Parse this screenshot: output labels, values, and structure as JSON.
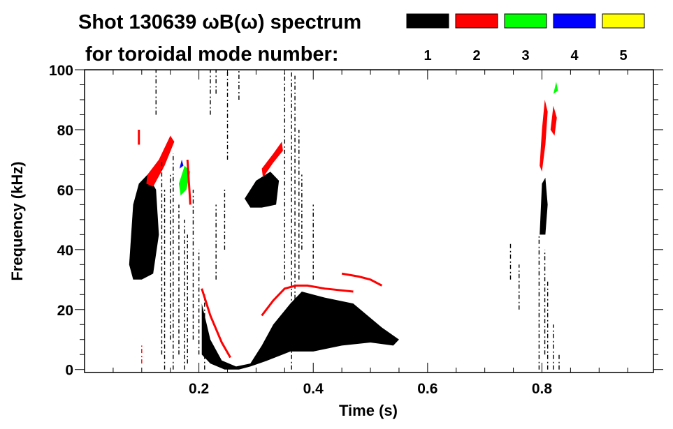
{
  "chart_data": {
    "type": "heatmap",
    "title": "Shot 130639 ωB(ω) spectrum",
    "legend_title": "for toroidal mode number:",
    "legend": [
      {
        "label": "1",
        "color": "#000000"
      },
      {
        "label": "2",
        "color": "#ff0000"
      },
      {
        "label": "3",
        "color": "#00ff00"
      },
      {
        "label": "4",
        "color": "#0000ff"
      },
      {
        "label": "5",
        "color": "#ffff00"
      }
    ],
    "xlabel": "Time (s)",
    "ylabel": "Frequency (kHz)",
    "xlim": [
      0,
      0.995
    ],
    "ylim": [
      -1,
      100
    ],
    "xticks": [
      0.2,
      0.4,
      0.6,
      0.8
    ],
    "xtick_labels": [
      "0.2",
      "0.4",
      "0.6",
      "0.8"
    ],
    "yticks": [
      0,
      20,
      40,
      60,
      80,
      100
    ],
    "ytick_labels": [
      "0",
      "20",
      "40",
      "60",
      "80",
      "100"
    ],
    "regions": [
      {
        "mode": 1,
        "points": [
          [
            0.078,
            35
          ],
          [
            0.085,
            55
          ],
          [
            0.095,
            62
          ],
          [
            0.11,
            65
          ],
          [
            0.125,
            60
          ],
          [
            0.13,
            45
          ],
          [
            0.12,
            32
          ],
          [
            0.1,
            30
          ],
          [
            0.085,
            30
          ]
        ]
      },
      {
        "mode": 1,
        "points": [
          [
            0.205,
            22
          ],
          [
            0.22,
            10
          ],
          [
            0.24,
            3
          ],
          [
            0.265,
            1
          ],
          [
            0.29,
            2
          ],
          [
            0.31,
            8
          ],
          [
            0.33,
            15
          ],
          [
            0.36,
            22
          ],
          [
            0.38,
            26
          ],
          [
            0.42,
            24
          ],
          [
            0.47,
            22
          ],
          [
            0.52,
            14
          ],
          [
            0.55,
            10
          ],
          [
            0.54,
            8
          ],
          [
            0.5,
            9
          ],
          [
            0.45,
            8
          ],
          [
            0.4,
            6
          ],
          [
            0.36,
            6
          ],
          [
            0.32,
            3
          ],
          [
            0.29,
            1
          ],
          [
            0.27,
            0
          ],
          [
            0.245,
            0
          ],
          [
            0.22,
            2
          ],
          [
            0.205,
            5
          ]
        ]
      },
      {
        "mode": 1,
        "points": [
          [
            0.28,
            57
          ],
          [
            0.3,
            63
          ],
          [
            0.325,
            66
          ],
          [
            0.34,
            63
          ],
          [
            0.335,
            55
          ],
          [
            0.31,
            54
          ],
          [
            0.29,
            54
          ]
        ]
      },
      {
        "mode": 1,
        "points": [
          [
            0.796,
            45
          ],
          [
            0.8,
            62
          ],
          [
            0.806,
            64
          ],
          [
            0.81,
            55
          ],
          [
            0.806,
            45
          ]
        ]
      },
      {
        "mode": 2,
        "points": [
          [
            0.11,
            65
          ],
          [
            0.13,
            70
          ],
          [
            0.15,
            78
          ],
          [
            0.157,
            76
          ],
          [
            0.14,
            68
          ],
          [
            0.12,
            61
          ],
          [
            0.108,
            62
          ]
        ]
      },
      {
        "mode": 2,
        "points": [
          [
            0.31,
            67
          ],
          [
            0.33,
            72
          ],
          [
            0.345,
            76
          ],
          [
            0.347,
            73
          ],
          [
            0.33,
            69
          ],
          [
            0.312,
            64
          ]
        ]
      },
      {
        "mode": 2,
        "points": [
          [
            0.796,
            68
          ],
          [
            0.8,
            80
          ],
          [
            0.805,
            90
          ],
          [
            0.81,
            86
          ],
          [
            0.806,
            75
          ],
          [
            0.8,
            66
          ]
        ]
      },
      {
        "mode": 2,
        "points": [
          [
            0.815,
            80
          ],
          [
            0.82,
            88
          ],
          [
            0.826,
            84
          ],
          [
            0.822,
            78
          ]
        ]
      },
      {
        "mode": 3,
        "points": [
          [
            0.165,
            62
          ],
          [
            0.175,
            68
          ],
          [
            0.185,
            66
          ],
          [
            0.178,
            60
          ],
          [
            0.168,
            58
          ]
        ]
      },
      {
        "mode": 3,
        "points": [
          [
            0.82,
            92
          ],
          [
            0.825,
            96
          ],
          [
            0.828,
            93
          ]
        ]
      },
      {
        "mode": 4,
        "points": [
          [
            0.166,
            67
          ],
          [
            0.17,
            70
          ],
          [
            0.173,
            68
          ]
        ]
      }
    ],
    "lines": [
      {
        "mode": 2,
        "points": [
          [
            0.205,
            27
          ],
          [
            0.22,
            18
          ],
          [
            0.24,
            9
          ],
          [
            0.255,
            4
          ]
        ]
      },
      {
        "mode": 2,
        "points": [
          [
            0.31,
            18
          ],
          [
            0.33,
            23
          ],
          [
            0.35,
            27
          ],
          [
            0.37,
            28
          ],
          [
            0.39,
            28
          ],
          [
            0.42,
            27
          ],
          [
            0.47,
            26
          ]
        ]
      },
      {
        "mode": 2,
        "points": [
          [
            0.45,
            32
          ],
          [
            0.48,
            31
          ],
          [
            0.5,
            30
          ],
          [
            0.52,
            28
          ]
        ]
      },
      {
        "mode": 2,
        "points": [
          [
            0.095,
            80
          ],
          [
            0.095,
            75
          ]
        ]
      },
      {
        "mode": 2,
        "points": [
          [
            0.18,
            70
          ],
          [
            0.185,
            55
          ]
        ]
      }
    ],
    "streaks": [
      [
        0.135,
        5,
        70,
        1
      ],
      [
        0.14,
        0,
        60,
        1
      ],
      [
        0.15,
        10,
        65,
        1
      ],
      [
        0.155,
        0,
        72,
        1
      ],
      [
        0.165,
        5,
        55,
        1
      ],
      [
        0.175,
        0,
        50,
        1
      ],
      [
        0.18,
        2,
        45,
        1
      ],
      [
        0.19,
        10,
        60,
        1
      ],
      [
        0.2,
        5,
        40,
        1
      ],
      [
        0.21,
        0,
        25,
        1
      ],
      [
        0.23,
        30,
        55,
        1
      ],
      [
        0.245,
        40,
        60,
        1
      ],
      [
        0.25,
        70,
        100,
        1
      ],
      [
        0.35,
        30,
        100,
        1
      ],
      [
        0.362,
        0,
        100,
        1
      ],
      [
        0.368,
        20,
        98,
        1
      ],
      [
        0.375,
        30,
        80,
        1
      ],
      [
        0.38,
        40,
        65,
        1
      ],
      [
        0.4,
        30,
        55,
        1
      ],
      [
        0.22,
        85,
        100,
        1
      ],
      [
        0.23,
        92,
        100,
        1
      ],
      [
        0.1,
        2,
        8,
        2
      ],
      [
        0.795,
        0,
        45,
        1
      ],
      [
        0.805,
        5,
        40,
        1
      ],
      [
        0.81,
        0,
        30,
        1
      ],
      [
        0.82,
        0,
        15,
        1
      ],
      [
        0.745,
        30,
        42,
        1
      ],
      [
        0.76,
        20,
        35,
        1
      ],
      [
        0.83,
        0,
        5,
        1
      ],
      [
        0.125,
        85,
        100,
        1
      ],
      [
        0.27,
        90,
        100,
        1
      ]
    ]
  }
}
